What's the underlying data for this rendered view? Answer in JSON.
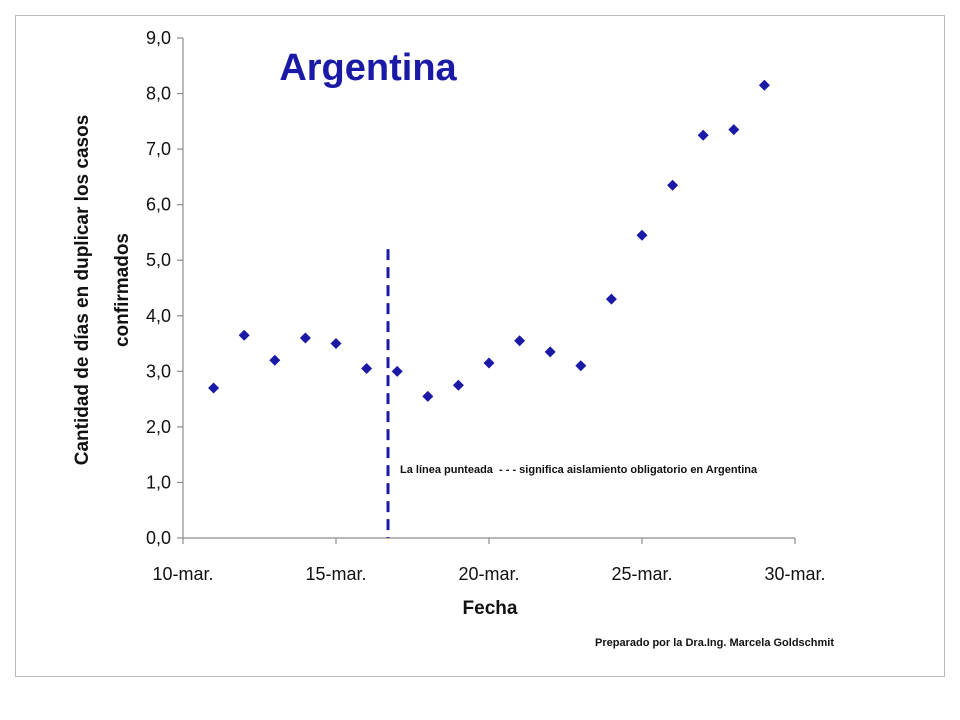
{
  "chart_data": {
    "type": "scatter",
    "title": "Argentina",
    "xlabel": "Fecha",
    "ylabel": "Cantidad de días en duplicar los casos confirmados",
    "ylabel_lines": [
      "Cantidad de días en duplicar los casos",
      "confirmados"
    ],
    "x_ticks": [
      "10-mar.",
      "15-mar.",
      "20-mar.",
      "25-mar.",
      "30-mar."
    ],
    "x_tick_days": [
      10,
      15,
      20,
      25,
      30
    ],
    "y_ticks": [
      "0,0",
      "1,0",
      "2,0",
      "3,0",
      "4,0",
      "5,0",
      "6,0",
      "7,0",
      "8,0",
      "9,0"
    ],
    "xlim": [
      10,
      30
    ],
    "ylim": [
      0,
      9
    ],
    "grid": false,
    "series": [
      {
        "color": "#1a1aa6",
        "marker": "diamond",
        "x": [
          "11-mar.",
          "12-mar.",
          "13-mar.",
          "14-mar.",
          "15-mar.",
          "16-mar.",
          "17-mar.",
          "18-mar.",
          "19-mar.",
          "20-mar.",
          "21-mar.",
          "22-mar.",
          "23-mar.",
          "24-mar.",
          "25-mar.",
          "26-mar.",
          "27-mar.",
          "28-mar.",
          "29-mar."
        ],
        "x_days": [
          11,
          12,
          13,
          14,
          15,
          16,
          17,
          18,
          19,
          20,
          21,
          22,
          23,
          24,
          25,
          26,
          27,
          28,
          29
        ],
        "values": [
          2.7,
          3.65,
          3.2,
          3.6,
          3.5,
          3.05,
          3.0,
          2.55,
          2.75,
          3.15,
          3.55,
          3.35,
          3.1,
          4.3,
          5.45,
          6.35,
          7.25,
          7.35,
          8.15
        ]
      }
    ],
    "reference_line": {
      "style": "dashed",
      "color": "#1a1aa6",
      "x_day": 16.7,
      "y_top": 5.2
    },
    "annotation": "La línea punteada  - - - significa aislamiento obligatorio en Argentina",
    "credit": "Preparado por la Dra.Ing. Marcela Goldschmit",
    "title_color": "#1a1aa6",
    "axis_color": "#8c8c8c"
  }
}
